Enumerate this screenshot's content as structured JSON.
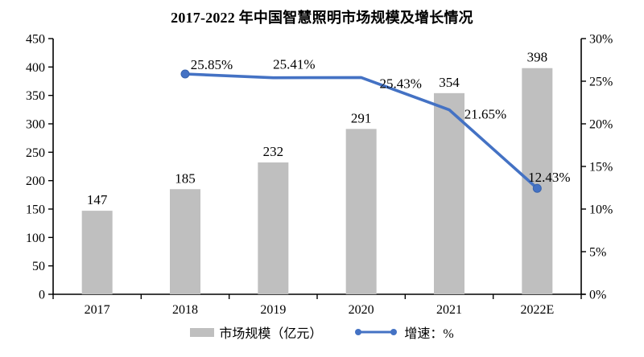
{
  "page": {
    "background": "#ffffff"
  },
  "chart_data": {
    "type": "bar",
    "combo": "bar+line",
    "title": "2017-2022 年中国智慧照明市场规模及增长情况",
    "categories": [
      "2017",
      "2018",
      "2019",
      "2020",
      "2021",
      "2022E"
    ],
    "series": [
      {
        "name": "市场规模（亿元）",
        "type": "bar",
        "axis": "left",
        "color": "#bfbfbf",
        "values": [
          147,
          185,
          232,
          291,
          354,
          398
        ],
        "labels": [
          "147",
          "185",
          "232",
          "291",
          "354",
          "398"
        ]
      },
      {
        "name": "增速：%",
        "type": "line",
        "axis": "right",
        "color": "#4472c4",
        "marker_edge_color": "#3a64ad",
        "values": [
          null,
          25.85,
          25.41,
          25.43,
          21.65,
          12.43
        ],
        "labels": [
          "",
          "25.85%",
          "25.41%",
          "25.43%",
          "21.65%",
          "12.43%"
        ]
      }
    ],
    "left_axis": {
      "min": 0,
      "max": 450,
      "step": 50,
      "tick_labels": [
        "0",
        "50",
        "100",
        "150",
        "200",
        "250",
        "300",
        "350",
        "400",
        "450"
      ]
    },
    "right_axis": {
      "min": 0,
      "max": 30,
      "step": 5,
      "tick_labels": [
        "0%",
        "5%",
        "10%",
        "15%",
        "20%",
        "25%",
        "30%"
      ]
    },
    "legend": {
      "position": "bottom",
      "items": [
        "市场规模（亿元）",
        "增速：%"
      ]
    },
    "grid": false,
    "axis_color": "#000000",
    "text_color": "#000000"
  }
}
